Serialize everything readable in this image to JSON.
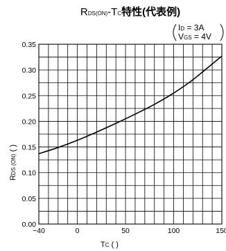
{
  "chart_data": {
    "type": "line",
    "title": {
      "prefix_main": "R",
      "prefix_sub": "DS(ON)",
      "mid_main": "-T",
      "mid_sub": "C",
      "suffix": "特性(代表例)"
    },
    "conditions": [
      {
        "main": "I",
        "sub": "D",
        "rest": " = 3A"
      },
      {
        "main": "V",
        "sub": "GS",
        "rest": " = 4V"
      }
    ],
    "xlabel": {
      "main": "T",
      "sub": "C",
      "rest": " (     )"
    },
    "ylabel": {
      "main": "R",
      "sub": "DS (ON)",
      "rest": " (     )"
    },
    "xlim": [
      -40,
      150
    ],
    "ylim": [
      0,
      0.35
    ],
    "x_ticks": [
      -40,
      0,
      50,
      100,
      150
    ],
    "x_tick_labels": [
      "−40",
      "0",
      "50",
      "100",
      "150"
    ],
    "y_ticks": [
      0,
      0.05,
      0.1,
      0.15,
      0.2,
      0.25,
      0.3,
      0.35
    ],
    "y_tick_labels": [
      "0.00",
      "0.05",
      "0.10",
      "0.15",
      "0.20",
      "0.25",
      "0.30",
      "0.35"
    ],
    "grid_x_step": 10,
    "grid_y_step": 0.025,
    "grid": true,
    "series": [
      {
        "x": [
          -40,
          -20,
          0,
          20,
          40,
          60,
          80,
          100,
          120,
          150
        ],
        "values": [
          0.137,
          0.149,
          0.163,
          0.179,
          0.196,
          0.214,
          0.233,
          0.255,
          0.281,
          0.327
        ]
      }
    ]
  }
}
